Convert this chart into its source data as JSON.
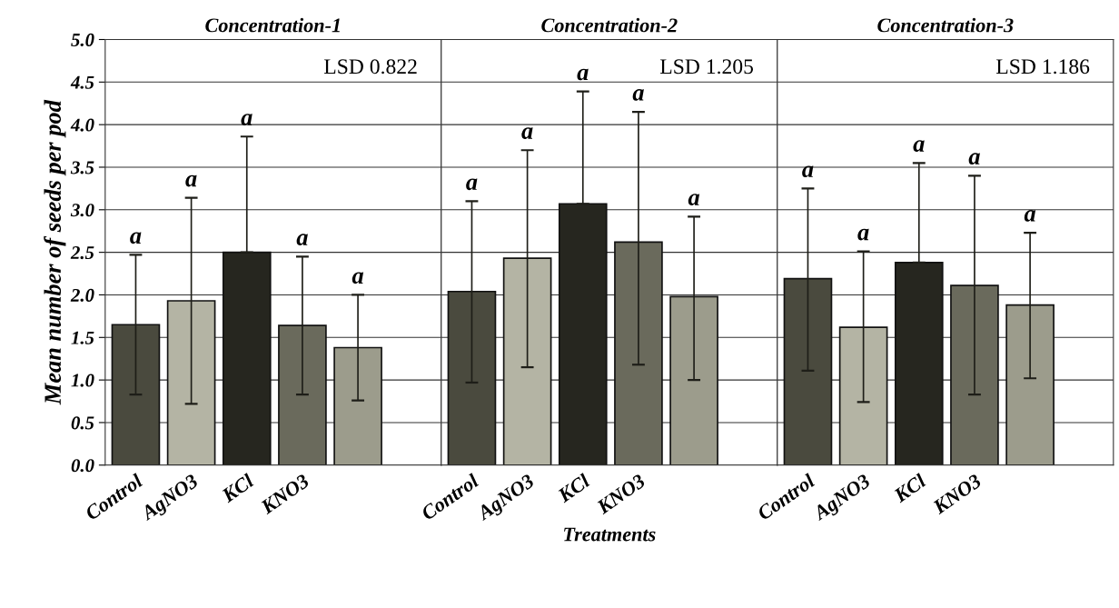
{
  "chart_data": [
    {
      "type": "bar",
      "title": "Concentration-1",
      "ylabel": "Mean number of seeds per pod",
      "categories": [
        "Control",
        "AgNO3",
        "KCl",
        "KNO3",
        null
      ],
      "values": [
        1.65,
        1.93,
        2.5,
        1.64,
        1.38
      ],
      "errors": [
        [
          0.83,
          2.47
        ],
        [
          0.72,
          3.14
        ],
        [
          2.5,
          3.86
        ],
        [
          0.83,
          2.45
        ],
        [
          0.76,
          2.0
        ]
      ],
      "colors": [
        "#4a4a3e",
        "#b4b4a4",
        "#26261f",
        "#6a6a5c",
        "#9c9c8c"
      ],
      "ylim": [
        0,
        5
      ],
      "yticks": [
        {
          "value": 0,
          "label": "0.0"
        },
        {
          "value": 0.5,
          "label": "0.5"
        },
        {
          "value": 1,
          "label": "1.0"
        },
        {
          "value": 1.5,
          "label": "1.5"
        },
        {
          "value": 2,
          "label": "2.0"
        },
        {
          "value": 2.5,
          "label": "2.5"
        },
        {
          "value": 3,
          "label": "3.0"
        },
        {
          "value": 3.5,
          "label": "3.5"
        },
        {
          "value": 4,
          "label": "4.0"
        },
        {
          "value": 4.5,
          "label": "4.5"
        },
        {
          "value": 5,
          "label": "5.0"
        }
      ],
      "grid": "y",
      "annotations": [
        "LSD 0.822",
        {
          "text": "a",
          "x": "Control",
          "y": 2.47
        },
        {
          "text": "a",
          "x": "AgNO3",
          "y": 3.14
        },
        {
          "text": "a",
          "x": "KCl",
          "y": 3.86
        },
        {
          "text": "a",
          "x": "KNO3",
          "y": 2.45
        },
        "a"
      ]
    },
    {
      "type": "bar",
      "title": "Concentration-2",
      "xlabel": "Treatments",
      "categories": [
        "Control",
        "AgNO3",
        "KCl",
        "KNO3",
        null
      ],
      "values": [
        2.04,
        2.43,
        3.07,
        2.62,
        1.98
      ],
      "errors": [
        [
          0.97,
          3.1
        ],
        [
          1.15,
          3.7
        ],
        [
          3.07,
          4.39
        ],
        [
          1.18,
          4.15
        ],
        [
          1.0,
          2.92
        ]
      ],
      "colors": [
        "#4a4a3e",
        "#b4b4a4",
        "#26261f",
        "#6a6a5c",
        "#9c9c8c"
      ],
      "ylim": [
        0,
        5
      ],
      "yticks": [
        {
          "value": 0,
          "label": null
        },
        {
          "value": 0.5,
          "label": null
        },
        {
          "value": 1,
          "label": null
        },
        {
          "value": 1.5,
          "label": null
        },
        {
          "value": 2,
          "label": null
        },
        {
          "value": 2.5,
          "label": null
        },
        {
          "value": 3,
          "label": null
        },
        {
          "value": 3.5,
          "label": null
        },
        {
          "value": 4,
          "label": null
        },
        {
          "value": 4.5,
          "label": null
        },
        {
          "value": 5,
          "label": null
        }
      ],
      "grid": "y",
      "tick_labels": "x",
      "annotations": [
        "LSD 1.205",
        {
          "text": "a",
          "x": "Control",
          "y": 3.1
        },
        {
          "text": "a",
          "x": "AgNO3",
          "y": 3.7
        },
        {
          "text": "a",
          "x": "KCl",
          "y": 4.39
        },
        {
          "text": "a",
          "x": "KNO3",
          "y": 4.15
        },
        "a"
      ]
    },
    {
      "type": "bar",
      "title": "Concentration-3",
      "categories": [
        "Control",
        "AgNO3",
        "KCl",
        "KNO3",
        null
      ],
      "values": [
        2.19,
        1.62,
        2.38,
        2.11,
        1.88
      ],
      "errors": [
        [
          1.11,
          3.25
        ],
        [
          0.74,
          2.51
        ],
        [
          2.38,
          3.55
        ],
        [
          0.83,
          3.4
        ],
        [
          1.02,
          2.73
        ]
      ],
      "colors": [
        "#4a4a3e",
        "#b4b4a4",
        "#26261f",
        "#6a6a5c",
        "#9c9c8c"
      ],
      "ylim": [
        0,
        5
      ],
      "yticks": [
        {
          "value": 0,
          "label": null
        },
        {
          "value": 0.5,
          "label": null
        },
        {
          "value": 1,
          "label": null
        },
        {
          "value": 1.5,
          "label": null
        },
        {
          "value": 2,
          "label": null
        },
        {
          "value": 2.5,
          "label": null
        },
        {
          "value": 3,
          "label": null
        },
        {
          "value": 3.5,
          "label": null
        },
        {
          "value": 4,
          "label": null
        },
        {
          "value": 4.5,
          "label": null
        },
        {
          "value": 5,
          "label": null
        }
      ],
      "grid": "y",
      "tick_labels": "x",
      "annotations": [
        "LSD 1.186",
        {
          "text": "a",
          "x": "Control",
          "y": 3.25
        },
        {
          "text": "a",
          "x": "AgNO3",
          "y": 2.51
        },
        {
          "text": "a",
          "x": "KCl",
          "y": 3.55
        },
        {
          "text": "a",
          "x": "KNO3",
          "y": 3.4
        },
        "a"
      ]
    }
  ]
}
